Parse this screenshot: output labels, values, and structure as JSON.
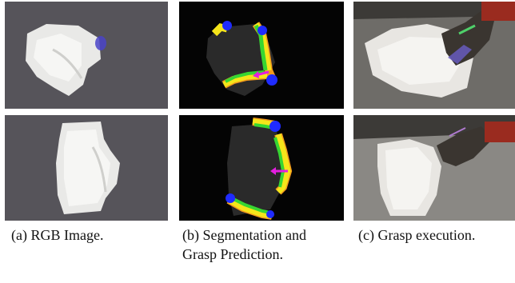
{
  "figure": {
    "captions": {
      "a": "(a) RGB Image.",
      "b_line1": "(b) Segmentation and",
      "b_line2": "Grasp Prediction.",
      "c": "(c) Grasp execution."
    },
    "colors": {
      "rgb_background": "#56545a",
      "segmentation_background": "#040404",
      "cloth_mask": "#2a2a2a",
      "edge_green": "#37d631",
      "edge_yellow": "#f5e51a",
      "edge_orange": "#f29a1c",
      "corner_blue": "#1f2bff",
      "grasp_arrow": "#e41ee0",
      "gripper_dark": "#3a3530",
      "robot_red": "#9a2b1f"
    }
  }
}
